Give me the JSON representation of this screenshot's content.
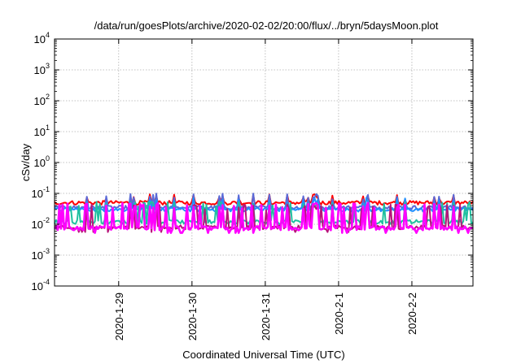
{
  "chart_data": {
    "type": "line",
    "title": "/data/run/goesPlots/archive/2020-02-02/20:00/flux/../bryn/5daysMoon.plot",
    "xlabel": "Coordinated Universal Time (UTC)",
    "ylabel": "cSv/day",
    "y_scale": "log",
    "ylim": [
      0.0001,
      10000
    ],
    "y_ticks": [
      {
        "value": 0.0001,
        "base": "10",
        "exp": "-4"
      },
      {
        "value": 0.001,
        "base": "10",
        "exp": "-3"
      },
      {
        "value": 0.01,
        "base": "10",
        "exp": "-2"
      },
      {
        "value": 0.1,
        "base": "10",
        "exp": "-1"
      },
      {
        "value": 1,
        "base": "10",
        "exp": "0"
      },
      {
        "value": 10,
        "base": "10",
        "exp": "1"
      },
      {
        "value": 100,
        "base": "10",
        "exp": "2"
      },
      {
        "value": 1000,
        "base": "10",
        "exp": "3"
      },
      {
        "value": 10000,
        "base": "10",
        "exp": "4"
      }
    ],
    "xlim": [
      "2020-01-28T03:00",
      "2020-02-02T20:00"
    ],
    "x_ticks": [
      "2020-1-29",
      "2020-1-30",
      "2020-1-31",
      "2020-2-1",
      "2020-2-2"
    ],
    "grid": true,
    "series": [
      {
        "color": "#ff0000",
        "baseline": 0.05,
        "spike": 0.085
      },
      {
        "color": "#5a6ad8",
        "baseline": 0.035,
        "spike": 0.09
      },
      {
        "color": "#1e90ff",
        "baseline": 0.03,
        "spike": 0.065
      },
      {
        "color": "#20c0a0",
        "baseline": 0.012,
        "spike": 0.05
      },
      {
        "color": "#b8157a",
        "baseline": 0.008,
        "spike": 0.04
      },
      {
        "color": "#ff00ff",
        "baseline": 0.0075,
        "spike": 0.045
      }
    ]
  }
}
